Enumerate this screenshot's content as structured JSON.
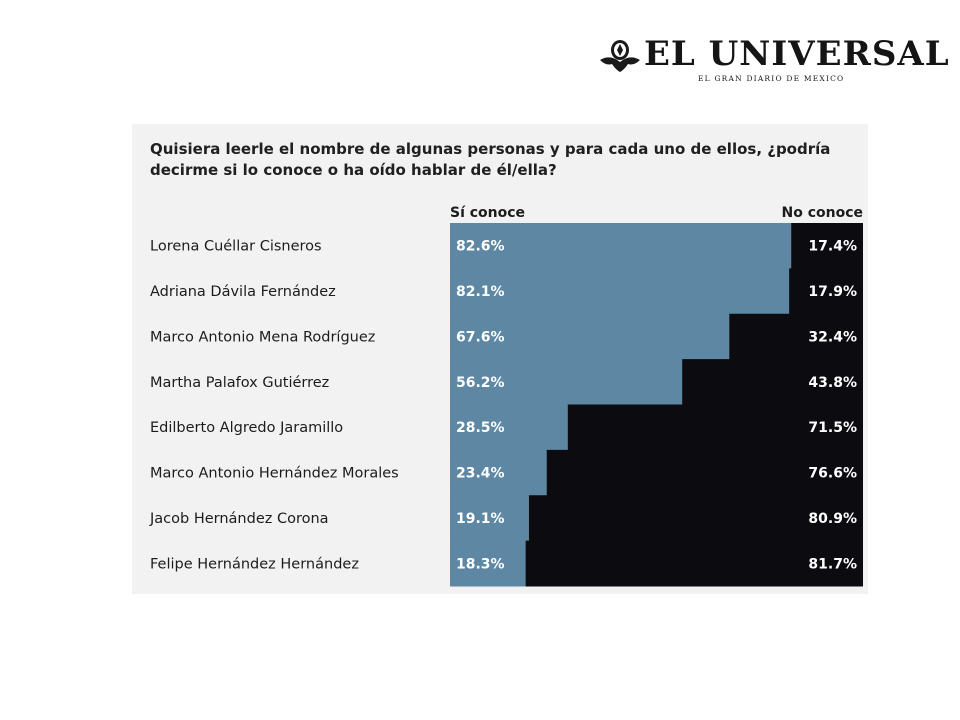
{
  "logo": {
    "name": "EL UNIVERSAL",
    "tagline": "EL GRAN DIARIO DE MEXICO"
  },
  "question": "Quisiera leerle el nombre de algunas personas y para cada uno de ellos, ¿podría decirme si lo conoce o ha oído hablar de él/ella?",
  "colors": {
    "si_conoce": "#5d87a3",
    "no_conoce": "#0c0c10",
    "panel": "#f2f2f2"
  },
  "chart_data": {
    "type": "bar",
    "stacked": true,
    "orientation": "horizontal",
    "categories": [
      "Lorena Cuéllar Cisneros",
      "Adriana Dávila Fernández",
      "Marco Antonio Mena Rodríguez",
      "Martha Palafox Gutiérrez",
      "Edilberto Algredo Jaramillo",
      "Marco Antonio Hernández Morales",
      "Jacob Hernández Corona",
      "Felipe Hernández Hernández"
    ],
    "series": [
      {
        "name": "Sí conoce",
        "values": [
          82.6,
          82.1,
          67.6,
          56.2,
          28.5,
          23.4,
          19.1,
          18.3
        ],
        "labels": [
          "82.6%",
          "82.1%",
          "67.6%",
          "56.2%",
          "28.5%",
          "23.4%",
          "19.1%",
          "18.3%"
        ]
      },
      {
        "name": "No conoce",
        "values": [
          17.4,
          17.9,
          32.4,
          43.8,
          71.5,
          76.6,
          80.9,
          81.7
        ],
        "labels": [
          "17.4%",
          "17.9%",
          "32.4%",
          "43.8%",
          "71.5%",
          "76.6%",
          "80.9%",
          "81.7%"
        ]
      }
    ],
    "xlim": [
      0,
      100
    ],
    "legend": "top"
  }
}
